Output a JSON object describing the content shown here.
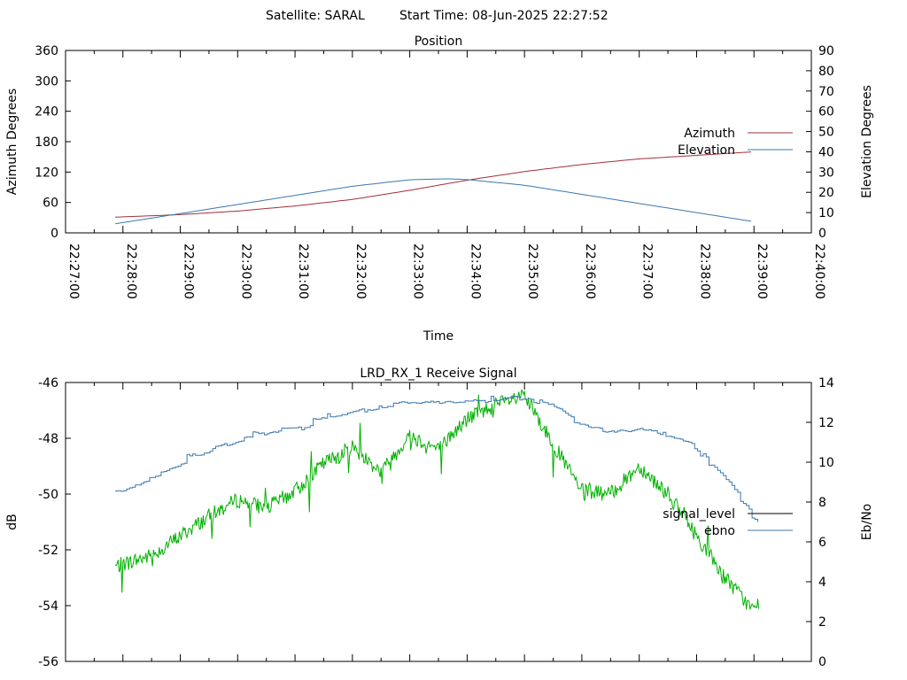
{
  "header": {
    "satellite": "Satellite: SARAL",
    "start_time": "Start Time: 08-Jun-2025 22:27:52"
  },
  "chart_data": [
    {
      "type": "line",
      "title": "Position",
      "xlabel": "Time",
      "ylabel": "Azimuth Degrees",
      "y2label": "Elevation Degrees",
      "xlim": [
        "22:27:00",
        "22:40:00"
      ],
      "ylim": [
        0,
        360
      ],
      "y2lim": [
        0,
        90
      ],
      "x_ticks": [
        "22:27:00",
        "22:28:00",
        "22:29:00",
        "22:30:00",
        "22:31:00",
        "22:32:00",
        "22:33:00",
        "22:34:00",
        "22:35:00",
        "22:36:00",
        "22:37:00",
        "22:38:00",
        "22:39:00",
        "22:40:00"
      ],
      "y_ticks": [
        "0",
        "60",
        "120",
        "180",
        "240",
        "300",
        "360"
      ],
      "y2_ticks": [
        "0",
        "10",
        "20",
        "30",
        "40",
        "50",
        "60",
        "70",
        "80",
        "90"
      ],
      "grid": false,
      "legend": "right",
      "series": [
        {
          "name": "Azimuth",
          "axis": "left",
          "color": "#a0303a",
          "x": [
            "22:27:52",
            "22:29:00",
            "22:30:00",
            "22:31:00",
            "22:32:00",
            "22:33:00",
            "22:34:00",
            "22:35:00",
            "22:36:00",
            "22:37:00",
            "22:38:00",
            "22:39:00"
          ],
          "y": [
            31,
            36,
            43,
            53,
            66,
            84,
            104,
            121,
            135,
            146,
            153,
            160
          ]
        },
        {
          "name": "Elevation",
          "axis": "right",
          "color": "#3a78b0",
          "x": [
            "22:27:52",
            "22:29:00",
            "22:30:00",
            "22:31:00",
            "22:32:00",
            "22:33:00",
            "22:33:40",
            "22:34:00",
            "22:35:00",
            "22:36:00",
            "22:37:00",
            "22:38:00",
            "22:39:00"
          ],
          "y": [
            4.5,
            9.5,
            14,
            18.5,
            23,
            26.2,
            26.7,
            26.3,
            23.5,
            19,
            14.5,
            10,
            5.5
          ]
        }
      ]
    },
    {
      "type": "line",
      "title": "LRD_RX_1 Receive Signal",
      "ylabel": "dB",
      "y2label": "Eb/No",
      "xlim": [
        "22:27:00",
        "22:40:00"
      ],
      "ylim": [
        -56,
        -46
      ],
      "y2lim": [
        0,
        14
      ],
      "y_ticks": [
        "-46",
        "-48",
        "-50",
        "-52",
        "-54",
        "-56"
      ],
      "y2_ticks": [
        "0",
        "2",
        "4",
        "6",
        "8",
        "10",
        "12",
        "14"
      ],
      "grid": false,
      "legend": "right",
      "series": [
        {
          "name": "signal_level",
          "axis": "left",
          "color": "#00b000",
          "x": [
            "22:27:52",
            "22:28:30",
            "22:29:00",
            "22:29:30",
            "22:30:00",
            "22:30:30",
            "22:31:00",
            "22:31:30",
            "22:32:00",
            "22:32:30",
            "22:33:00",
            "22:33:30",
            "22:34:00",
            "22:34:30",
            "22:35:00",
            "22:35:30",
            "22:36:00",
            "22:36:30",
            "22:37:00",
            "22:37:30",
            "22:38:00",
            "22:38:30",
            "22:39:00",
            "22:39:05"
          ],
          "y": [
            -52.6,
            -52.2,
            -51.5,
            -50.8,
            -50.2,
            -50.5,
            -49.9,
            -48.9,
            -48.3,
            -49.2,
            -47.9,
            -48.4,
            -47.3,
            -46.8,
            -46.5,
            -48.2,
            -49.9,
            -50.0,
            -49.0,
            -50.0,
            -51.5,
            -53.0,
            -54.2,
            -53.9
          ]
        },
        {
          "name": "ebno",
          "axis": "right",
          "color": "#3a78b0",
          "x": [
            "22:27:52",
            "22:28:30",
            "22:29:00",
            "22:29:30",
            "22:30:00",
            "22:30:30",
            "22:31:00",
            "22:31:30",
            "22:32:00",
            "22:32:30",
            "22:33:00",
            "22:33:30",
            "22:34:00",
            "22:34:30",
            "22:35:00",
            "22:35:30",
            "22:36:00",
            "22:36:30",
            "22:37:00",
            "22:37:30",
            "22:38:00",
            "22:38:30",
            "22:39:00",
            "22:39:05"
          ],
          "y": [
            8.4,
            9.4,
            10.1,
            10.6,
            11.2,
            11.5,
            11.6,
            12.3,
            12.6,
            12.7,
            13.0,
            13.0,
            13.1,
            13.2,
            13.3,
            12.7,
            11.8,
            11.5,
            11.7,
            11.3,
            10.7,
            8.8,
            7.1,
            6.6
          ]
        }
      ]
    }
  ]
}
